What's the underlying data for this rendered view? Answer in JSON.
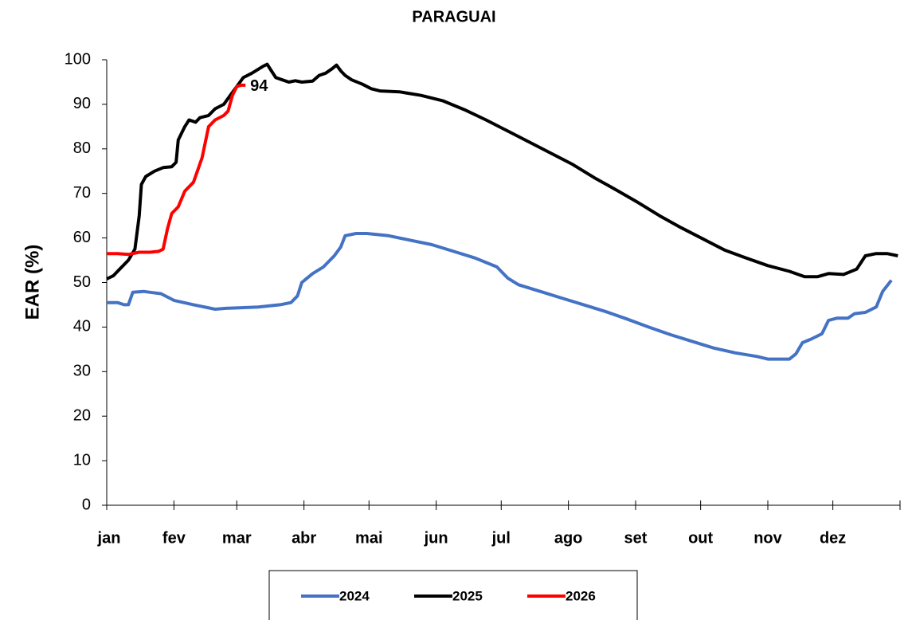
{
  "chart_data": {
    "type": "line",
    "title": "PARAGUAI",
    "y_label": "EAR (%)",
    "xlim": [
      0,
      366
    ],
    "xticks": [
      {
        "value": 0,
        "label": "jan"
      },
      {
        "value": 31,
        "label": "fev"
      },
      {
        "value": 60,
        "label": "mar"
      },
      {
        "value": 91,
        "label": "abr"
      },
      {
        "value": 121,
        "label": "mai"
      },
      {
        "value": 152,
        "label": "jun"
      },
      {
        "value": 182,
        "label": "jul"
      },
      {
        "value": 213,
        "label": "ago"
      },
      {
        "value": 244,
        "label": "set"
      },
      {
        "value": 274,
        "label": "out"
      },
      {
        "value": 305,
        "label": "nov"
      },
      {
        "value": 335,
        "label": "dez"
      }
    ],
    "ylim": [
      0,
      100
    ],
    "yticks": [
      0,
      10,
      20,
      30,
      40,
      50,
      60,
      70,
      80,
      90,
      100
    ],
    "grid": false,
    "legend": "bottom",
    "series": [
      {
        "name": "2024",
        "color": "#4472c4",
        "x": [
          0,
          5,
          8,
          10,
          12,
          17,
          20,
          25,
          31,
          40,
          50,
          55,
          60,
          70,
          80,
          85,
          88,
          90,
          95,
          100,
          105,
          108,
          110,
          115,
          120,
          130,
          140,
          150,
          160,
          170,
          180,
          185,
          190,
          200,
          210,
          220,
          230,
          240,
          250,
          260,
          270,
          280,
          290,
          300,
          305,
          310,
          315,
          318,
          321,
          325,
          330,
          333,
          337,
          342,
          345,
          350,
          355,
          358,
          362
        ],
        "values": [
          45.5,
          45.5,
          45,
          45,
          47.8,
          48,
          47.8,
          47.5,
          46,
          45,
          44,
          44.2,
          44.3,
          44.5,
          45,
          45.5,
          47,
          50,
          52,
          53.5,
          56,
          58,
          60.5,
          61,
          61,
          60.5,
          59.5,
          58.5,
          57,
          55.5,
          53.5,
          51,
          49.5,
          48,
          46.5,
          45,
          43.5,
          41.8,
          40,
          38.3,
          36.8,
          35.3,
          34.2,
          33.4,
          32.8,
          32.8,
          32.8,
          34,
          36.5,
          37.3,
          38.5,
          41.5,
          42,
          42,
          43,
          43.3,
          44.5,
          48,
          50.5
        ]
      },
      {
        "name": "2025",
        "color": "#000000",
        "x": [
          0,
          3,
          6,
          10,
          13,
          15,
          16,
          18,
          22,
          26,
          30,
          32,
          33,
          36,
          38,
          41,
          43,
          47,
          50,
          54,
          57,
          60,
          63,
          67,
          72,
          74,
          76,
          78,
          81,
          84,
          87,
          90,
          95,
          98,
          101,
          104,
          106,
          108,
          110,
          113,
          118,
          122,
          126,
          135,
          145,
          155,
          165,
          175,
          185,
          195,
          205,
          215,
          225,
          235,
          245,
          255,
          265,
          275,
          285,
          295,
          305,
          315,
          322,
          328,
          333,
          340,
          346,
          350,
          355,
          360,
          365
        ],
        "values": [
          50.8,
          51.5,
          53,
          55,
          57.5,
          65,
          72,
          73.8,
          75,
          75.8,
          76,
          77,
          82,
          85,
          86.5,
          86,
          87,
          87.5,
          89,
          90,
          92,
          94,
          96,
          97,
          98.5,
          99,
          97.5,
          96,
          95.5,
          95,
          95.3,
          95,
          95.2,
          96.5,
          97,
          98,
          98.8,
          97.5,
          96.5,
          95.5,
          94.5,
          93.5,
          93,
          92.8,
          92,
          90.8,
          88.8,
          86.5,
          84,
          81.5,
          79,
          76.5,
          73.5,
          70.8,
          68,
          65,
          62.3,
          59.8,
          57.3,
          55.5,
          53.8,
          52.5,
          51.3,
          51.3,
          52,
          51.8,
          53,
          56,
          56.5,
          56.5,
          56
        ]
      },
      {
        "name": "2026",
        "color": "#ff0000",
        "x": [
          0,
          5,
          10,
          15,
          20,
          24,
          26,
          28,
          30,
          33,
          36,
          40,
          44,
          47,
          50,
          54,
          56,
          58,
          60,
          62,
          64
        ],
        "values": [
          56.5,
          56.5,
          56.3,
          56.8,
          56.8,
          57,
          57.5,
          62,
          65.5,
          67,
          70.5,
          72.5,
          78,
          85,
          86.5,
          87.5,
          88.5,
          92,
          94,
          94.3,
          94.3
        ],
        "end_label": "94"
      }
    ]
  }
}
